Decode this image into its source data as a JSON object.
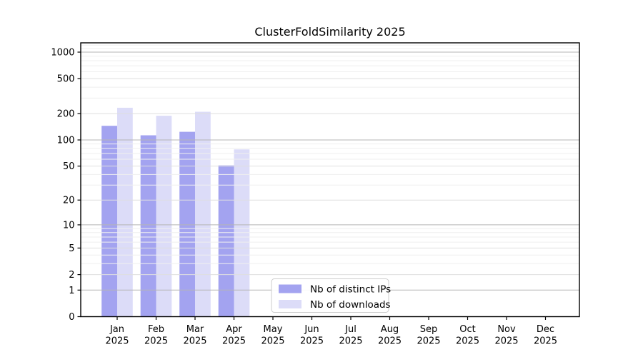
{
  "chart_data": {
    "type": "bar",
    "title": "ClusterFoldSimilarity 2025",
    "categories": [
      "Jan",
      "Feb",
      "Mar",
      "Apr",
      "May",
      "Jun",
      "Jul",
      "Aug",
      "Sep",
      "Oct",
      "Nov",
      "Dec"
    ],
    "category_year": "2025",
    "series": [
      {
        "name": "Nb of distinct IPs",
        "color": "#a3a3f0",
        "values": [
          145,
          113,
          124,
          51,
          0,
          0,
          0,
          0,
          0,
          0,
          0,
          0
        ]
      },
      {
        "name": "Nb of downloads",
        "color": "#dcdcf8",
        "values": [
          233,
          189,
          210,
          78,
          0,
          0,
          0,
          0,
          0,
          0,
          0,
          0
        ]
      }
    ],
    "yscale": "log1p",
    "yticks": [
      0,
      1,
      2,
      5,
      10,
      20,
      50,
      100,
      200,
      500,
      1000
    ],
    "minor_yticks": [
      3,
      4,
      6,
      7,
      8,
      9,
      30,
      40,
      60,
      70,
      80,
      90,
      300,
      400,
      600,
      700,
      800,
      900,
      1100,
      1200
    ],
    "ylim": [
      0,
      1270
    ],
    "xlabel": "",
    "ylabel": "",
    "grid": "horizontal",
    "legend_position": "inside-bottom-center",
    "colors": {
      "decade_gridline": "#b5b5b5",
      "major_gridline": "#dfdfdf",
      "minor_gridline": "#efefef",
      "axis": "#000000",
      "legend_border": "#cccccc",
      "legend_background": "#ffffff"
    }
  }
}
